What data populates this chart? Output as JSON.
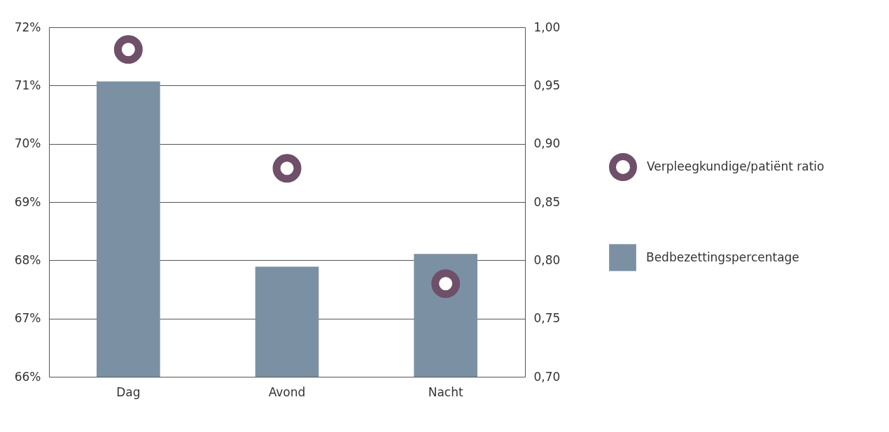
{
  "chart_data": {
    "type": "bar",
    "categories": [
      "Dag",
      "Avond",
      "Nacht"
    ],
    "series": [
      {
        "name": "Bedbezettingspercentage",
        "color": "#7b91a3",
        "values": [
          71.07,
          67.89,
          68.11
        ]
      },
      {
        "name": "Verpleegkundige/patiënt ratio",
        "type": "scatter",
        "axis": "y2",
        "color": "#6e5068",
        "values": [
          0.981,
          0.879,
          0.78
        ]
      }
    ],
    "ylim": [
      66,
      72
    ],
    "yticks": [
      {
        "value": 66,
        "label": "66%"
      },
      {
        "value": 67,
        "label": "67%"
      },
      {
        "value": 68,
        "label": "68%"
      },
      {
        "value": 69,
        "label": "69%"
      },
      {
        "value": 70,
        "label": "70%"
      },
      {
        "value": 71,
        "label": "71%"
      },
      {
        "value": 72,
        "label": "72%"
      }
    ],
    "y2lim": [
      0.7,
      1.0
    ],
    "y2ticks": [
      {
        "value": 0.7,
        "label": "0,70"
      },
      {
        "value": 0.75,
        "label": "0,75"
      },
      {
        "value": 0.8,
        "label": "0,80"
      },
      {
        "value": 0.85,
        "label": "0,85"
      },
      {
        "value": 0.9,
        "label": "0,90"
      },
      {
        "value": 0.95,
        "label": "0,95"
      },
      {
        "value": 1.0,
        "label": "1,00"
      }
    ],
    "grid": "y",
    "legend": "right",
    "marker": "circle"
  }
}
